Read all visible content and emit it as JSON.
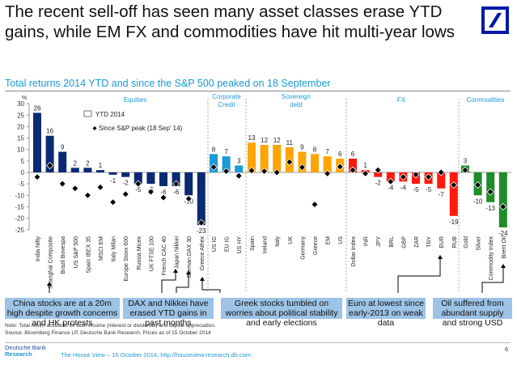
{
  "headline": "The recent sell-off has seen many asset classes erase YTD gains, while EM FX and commodities have hit multi-year lows",
  "subtitle": "Total returns 2014 YTD and since the S&P 500 peaked on 18 September",
  "colors": {
    "equities": "#0a2a72",
    "corporate_credit": "#1a9ad6",
    "sovereign_debt": "#ffa400",
    "fx": "#ff1a0a",
    "commodities": "#1e8c28",
    "group_label": "#1a9ad6",
    "callout_bg": "#9dc3e6",
    "brand": "#0018a8"
  },
  "chart_data": {
    "type": "bar",
    "title": "Total returns 2014 YTD and since the S&P 500 peaked on 18 September",
    "ylabel": "%",
    "xlabel": "",
    "ylim": [
      -25,
      30
    ],
    "yticks": [
      30,
      25,
      20,
      15,
      10,
      5,
      0,
      -5,
      -10,
      -15,
      -20,
      -25
    ],
    "grid": false,
    "legend": {
      "placement": "top-left-inside",
      "entries": [
        "YTD 2014",
        "Since S&P peak (18 Sep' 14)"
      ]
    },
    "groups": [
      {
        "name": "Equities",
        "color_key": "equities",
        "categories": [
          "India Nifty",
          "Shanghai Composite",
          "Brazil Bovespa",
          "US S&P 500",
          "Spain IBEX 35",
          "MSCI EM",
          "Italy Milan",
          "Europe Stoxx 600",
          "Russia Micex",
          "UK FTSE 100",
          "French CAC 40",
          "Japan Nikkei",
          "German DAX 30",
          "Greece Athex"
        ],
        "ytd": [
          26,
          16,
          9,
          2,
          2,
          1,
          -1,
          -2,
          -5,
          -5,
          -6,
          -6,
          -10,
          -23
        ],
        "since_peak": [
          -2,
          3,
          -5,
          -7,
          -10,
          -6.5,
          -13,
          -9.5,
          -5,
          -8.5,
          -11,
          -5,
          -11.5,
          -22
        ]
      },
      {
        "name": "Corporate Credit",
        "color_key": "corporate_credit",
        "categories": [
          "US IG",
          "EU IG",
          "US HY"
        ],
        "ytd": [
          8,
          7,
          3
        ],
        "since_peak": [
          2.3,
          0.5,
          -1.5
        ]
      },
      {
        "name": "Sovereign debt",
        "color_key": "sovereign_debt",
        "categories": [
          "Spain",
          "Ireland",
          "Italy",
          "UK",
          "Germany",
          "Greece",
          "EM",
          "US"
        ],
        "ytd": [
          13,
          12,
          12,
          11,
          9,
          8,
          7,
          6
        ],
        "since_peak": [
          0.8,
          0.5,
          0,
          4.5,
          2.2,
          -14,
          -0.5,
          2.5
        ]
      },
      {
        "name": "FX",
        "color_key": "fx",
        "categories": [
          "Dollar Index",
          "INR",
          "JPY",
          "BRL",
          "GBP",
          "ZAR",
          "TRY",
          "EUR",
          "RUB"
        ],
        "ytd": [
          6,
          1,
          -2,
          -4,
          -4,
          -5,
          -5,
          -7,
          -19
        ],
        "since_peak": [
          1,
          -0.5,
          1,
          -4,
          -2,
          -1,
          -2,
          0,
          -5.5
        ]
      },
      {
        "name": "Commodities",
        "color_key": "commodities",
        "categories": [
          "Gold",
          "Silver",
          "Commodity Index",
          "Brent Oil"
        ],
        "ytd": [
          3,
          -10,
          -13,
          -24
        ],
        "since_peak": [
          1,
          -5.5,
          -8.5,
          -15
        ]
      }
    ],
    "annotations": [
      "China stocks are at a 20m high despite growth concerns and HK protests",
      "DAX and Nikkei have erased YTD gains in past months",
      "Greek stocks tumbled on worries about political stability and early elections",
      "Euro at lowest since early-2013 on weak data",
      "Oil suffered from abundant supply and strong USD"
    ]
  },
  "callouts": {
    "china": "China stocks are at a 20m high despite growth concerns and HK protests",
    "dax_nikkei": "DAX and Nikkei have erased YTD gains in past months",
    "greek": "Greek stocks tumbled on worries about political stability and early elections",
    "euro": "Euro at lowest since early-2013 on weak data",
    "oil": "Oil suffered from abundant supply and strong USD"
  },
  "footer": {
    "note": "Note: Total return accounts for both income (interest or dividends) and capital appreciation.",
    "source": "Source: Bloomberg Finance LP, Deutsche Bank Research. Prices as of 15 October 2014",
    "brand_line1": "Deutsche Bank",
    "brand_line2": "Research",
    "publication": "The House View – 16 October 2014, http://houseview.research.db.com",
    "page": "6"
  }
}
